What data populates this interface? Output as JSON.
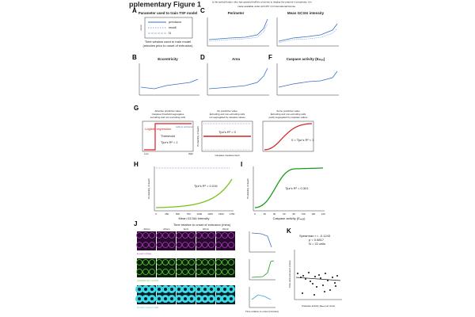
{
  "header": {
    "title": "pplementary Figure 1",
    "license_line1": "is the author/funder, who has granted bioRxiv a license to display the preprint in perpetuity. It is",
    "license_line2": "made available under aCC-BY 4.0 International license."
  },
  "panels": {
    "A": {
      "label": "A",
      "title": "Parameter used to train TSF model",
      "legend": [
        "precision",
        "recall",
        "f1"
      ],
      "xlabel": "Time window used to train model",
      "xlabel2": "(minutes prior to onset of extrusion)",
      "ylabel": "score"
    },
    "C": {
      "label": "C",
      "title": "Perimeter"
    },
    "E": {
      "title": "Mean GC3AI intensity"
    },
    "B": {
      "label": "B",
      "title": "Eccentricity"
    },
    "D": {
      "label": "D",
      "title": "Area"
    },
    "F": {
      "label": "F",
      "title": "Caspase activity (Eₘₐₓ)"
    },
    "G": {
      "label": "G",
      "cases": [
        {
          "title": "Absolute predictive value",
          "subtitle1": "Caspase threshold segregates",
          "subtitle2": "extruding and non-extruding cells",
          "note": "Tjur's R² = 1"
        },
        {
          "title": "No predictive value",
          "subtitle1": "Extruding and non-extruding cells",
          "subtitle2": "not segregated by caspase values",
          "note": "Tjur's R² = 0"
        },
        {
          "title": "Some predictive value",
          "subtitle1": "Extruding and non-extruding cells",
          "subtitle2": "partly segregated by caspase values",
          "note": "0 < Tjur's R² < 1"
        }
      ],
      "logistic": "Logistic regression",
      "threshold": "Threshold",
      "cells": "cells in extrusion",
      "low": "Low",
      "high": "High",
      "xlabel": "Caspase measurement",
      "ylabel": "Probability of death"
    },
    "H": {
      "label": "H",
      "note": "Tjur's R² = 0.016",
      "xlabel": "Mean GC3AI intensity",
      "ylabel": "Probability of death",
      "xticks": [
        "0",
        "250",
        "500",
        "750",
        "1000",
        "1250",
        "1500",
        "1750"
      ]
    },
    "I": {
      "label": "I",
      "note": "Tjur's R² = 0.301",
      "xlabel": "Caspase activity (Eₘₐₓ)",
      "ylabel": "Probability of death",
      "xticks": [
        "0",
        "20",
        "40",
        "60",
        "80",
        "100",
        "120",
        "140"
      ]
    },
    "J": {
      "label": "J",
      "title": "Time relative to onset of extrusion (mins)",
      "times": [
        "-40min",
        "-20min",
        "0min",
        "20min",
        "40min"
      ],
      "rows": [
        "E-cad::mKate",
        "pHH2A/LGK::GC3AI",
        "GC3AI::LifeAct::H2B"
      ],
      "plot_xlabel": "Time relative to onset (minutes)"
    },
    "K": {
      "label": "K",
      "stats": [
        "Spearman r = -0.1243",
        "p = 0.5817",
        "N = 22 cells"
      ],
      "xlabel": "Caspase activity (Eₘₐₓ) at onset",
      "ylabel": "Time until extrusion (mins)"
    }
  }
}
